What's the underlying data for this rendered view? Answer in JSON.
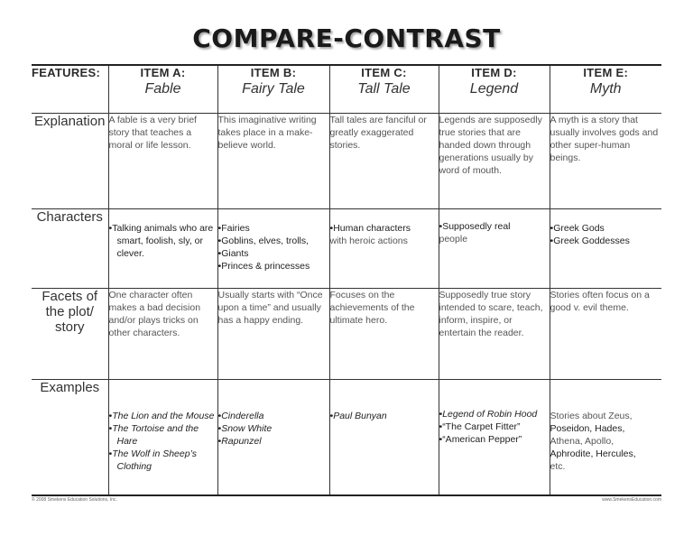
{
  "title": "COMPARE-CONTRAST",
  "header": {
    "features": "FEATURES:",
    "items": [
      {
        "label": "ITEM A:",
        "name": "Fable"
      },
      {
        "label": "ITEM B:",
        "name": "Fairy Tale"
      },
      {
        "label": "ITEM C:",
        "name": "Tall Tale"
      },
      {
        "label": "ITEM D:",
        "name": "Legend"
      },
      {
        "label": "ITEM E:",
        "name": "Myth"
      }
    ]
  },
  "rows": [
    {
      "label": "Explanation",
      "cells": [
        "A fable is a very brief story that teaches a moral or life lesson.",
        "This imaginative writing takes place in a make-believe world.",
        "Tall tales are fanciful or greatly exaggerated stories.",
        "Legends are supposedly true stories that are handed down through generations usually by word of mouth.",
        "A myth is a story that usually involves gods and other super-human beings."
      ]
    },
    {
      "label": "Characters",
      "cells": [
        {
          "bullets": [
            "Talking animals who are smart, foolish, sly, or clever."
          ]
        },
        {
          "bullets": [
            "Fairies",
            "Goblins, elves, trolls,",
            "Giants",
            "Princes & princesses"
          ]
        },
        {
          "bullets": [
            "Human characters"
          ],
          "text": "with heroic actions"
        },
        {
          "bullets": [
            "Supposedly real"
          ],
          "text": "people"
        },
        {
          "bullets": [
            "Greek Gods",
            "Greek Goddesses"
          ]
        }
      ]
    },
    {
      "label": "Facets of the plot/ story",
      "cells": [
        "One character often makes a bad decision and/or plays tricks on other characters.",
        "Usually starts with “Once upon a time” and usually has a happy ending.",
        "Focuses on the achievements of the ultimate hero.",
        "Supposedly true story intended to scare, teach, inform, inspire, or entertain the reader.",
        "Stories often focus on a good v. evil theme."
      ]
    },
    {
      "label": "Examples",
      "cells": [
        {
          "bullets": [
            "The Lion and the Mouse",
            "The Tortoise and the Hare",
            "The Wolf in Sheep’s Clothing"
          ]
        },
        {
          "bullets": [
            "Cinderella",
            "Snow White",
            "Rapunzel"
          ]
        },
        {
          "bullets": [
            "Paul Bunyan"
          ]
        },
        {
          "bullets": [
            "Legend of Robin Hood",
            "“The Carpet Fitter”",
            "“American Pepper”"
          ]
        },
        {
          "text_parts": [
            "Stories about Zeus,",
            "Poseidon, Hades,",
            "Athena, Apollo,",
            "Aphrodite, Hercules,",
            "etc."
          ]
        }
      ]
    }
  ],
  "footer": {
    "left": "© 2008 Smekens Education Solutions, Inc.",
    "right": "www.SmekensEducation.com"
  }
}
